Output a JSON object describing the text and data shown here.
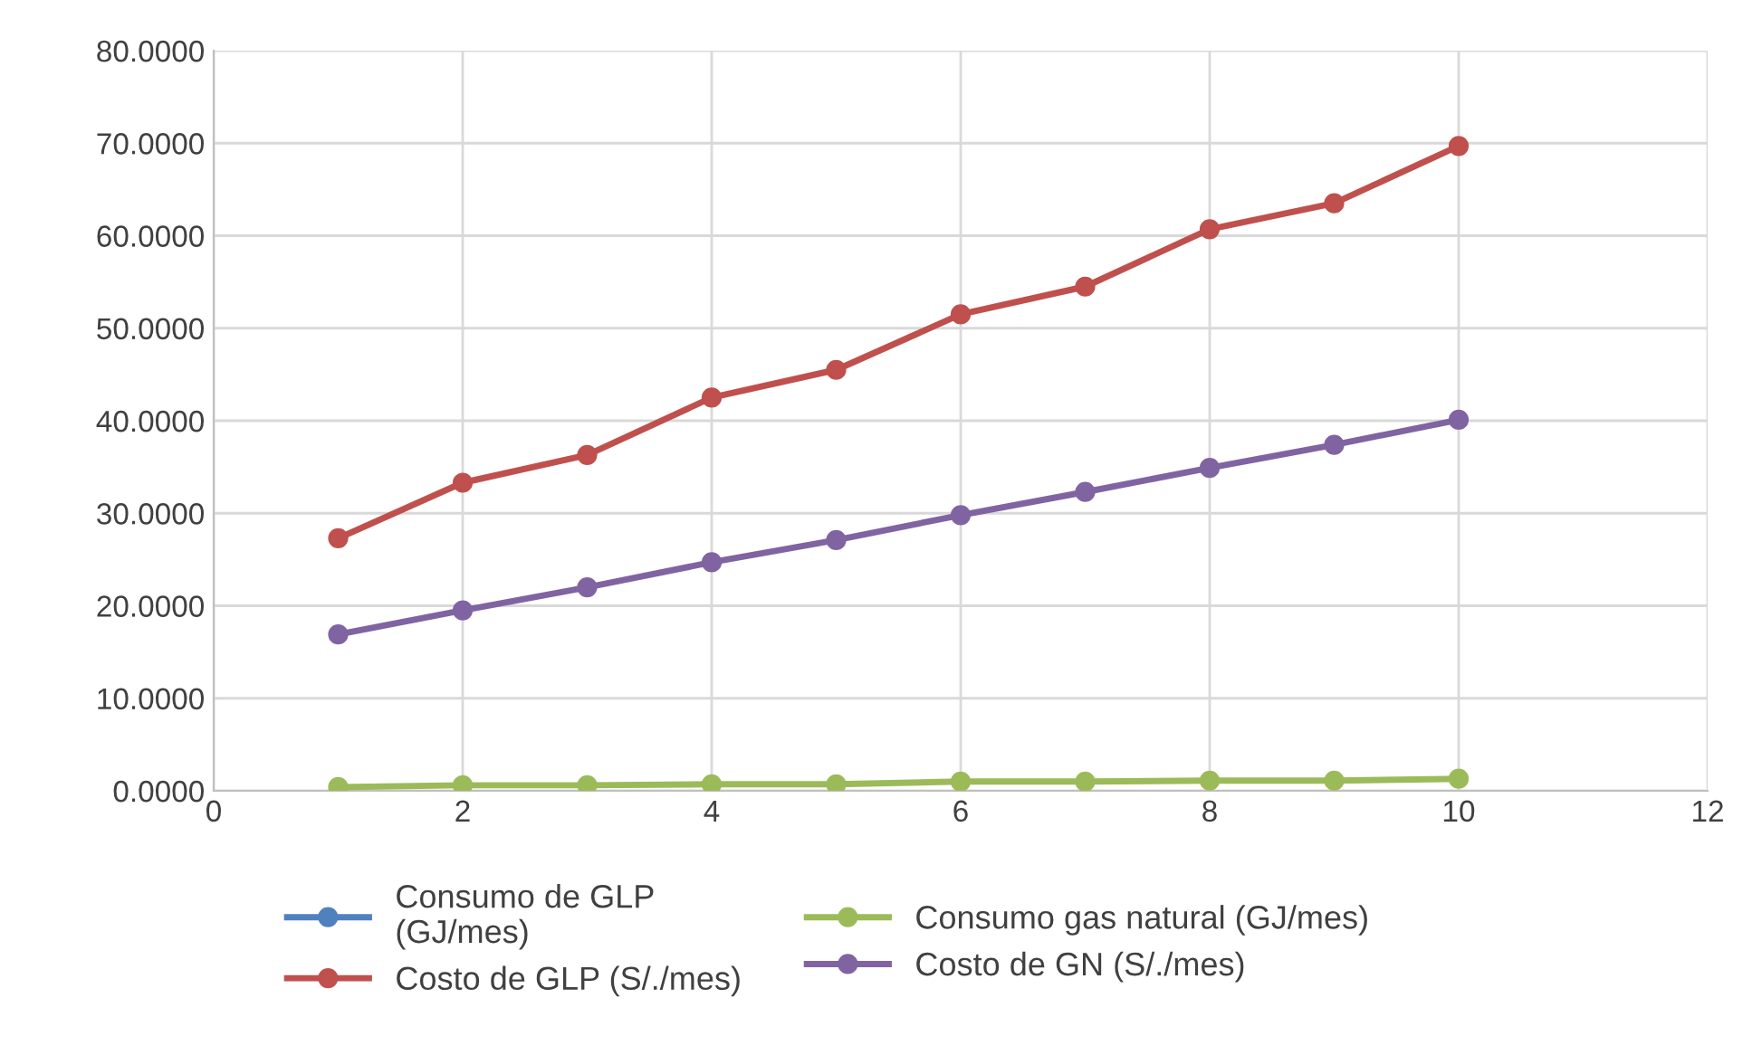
{
  "chart_data": {
    "type": "line",
    "x": [
      1,
      2,
      3,
      4,
      5,
      6,
      7,
      8,
      9,
      10
    ],
    "series": [
      {
        "name": "Consumo de GLP\n(GJ/mes)",
        "color": "#4f81bd",
        "values": [
          null,
          null,
          null,
          null,
          null,
          null,
          null,
          null,
          null,
          null
        ]
      },
      {
        "name": "Costo de GLP (S/./mes)",
        "color": "#c0504d",
        "values": [
          27.3,
          33.3,
          36.3,
          42.5,
          45.5,
          51.5,
          54.5,
          60.7,
          63.5,
          69.7
        ]
      },
      {
        "name": "Consumo gas natural (GJ/mes)",
        "color": "#9bbb59",
        "values": [
          0.4,
          0.6,
          0.6,
          0.7,
          0.7,
          1.0,
          1.0,
          1.1,
          1.1,
          1.3
        ]
      },
      {
        "name": "Costo de GN (S/./mes)",
        "color": "#8064a2",
        "values": [
          16.9,
          19.5,
          22.0,
          24.7,
          27.1,
          29.8,
          32.3,
          34.9,
          37.4,
          40.1
        ]
      }
    ],
    "xlim": [
      0,
      12
    ],
    "xticks": [
      0,
      2,
      4,
      6,
      8,
      10,
      12
    ],
    "ylim": [
      0,
      80
    ],
    "yticks": [
      {
        "value": 0,
        "label": "0.0000"
      },
      {
        "value": 10,
        "label": "10.0000"
      },
      {
        "value": 20,
        "label": "20.0000"
      },
      {
        "value": 30,
        "label": "30.0000"
      },
      {
        "value": 40,
        "label": "40.0000"
      },
      {
        "value": 50,
        "label": "50.0000"
      },
      {
        "value": 60,
        "label": "60.0000"
      },
      {
        "value": 70,
        "label": "70.0000"
      },
      {
        "value": 80,
        "label": "80.0000"
      }
    ],
    "grid": true,
    "legend": "bottom",
    "marker": "circle",
    "line_style": "solid"
  }
}
